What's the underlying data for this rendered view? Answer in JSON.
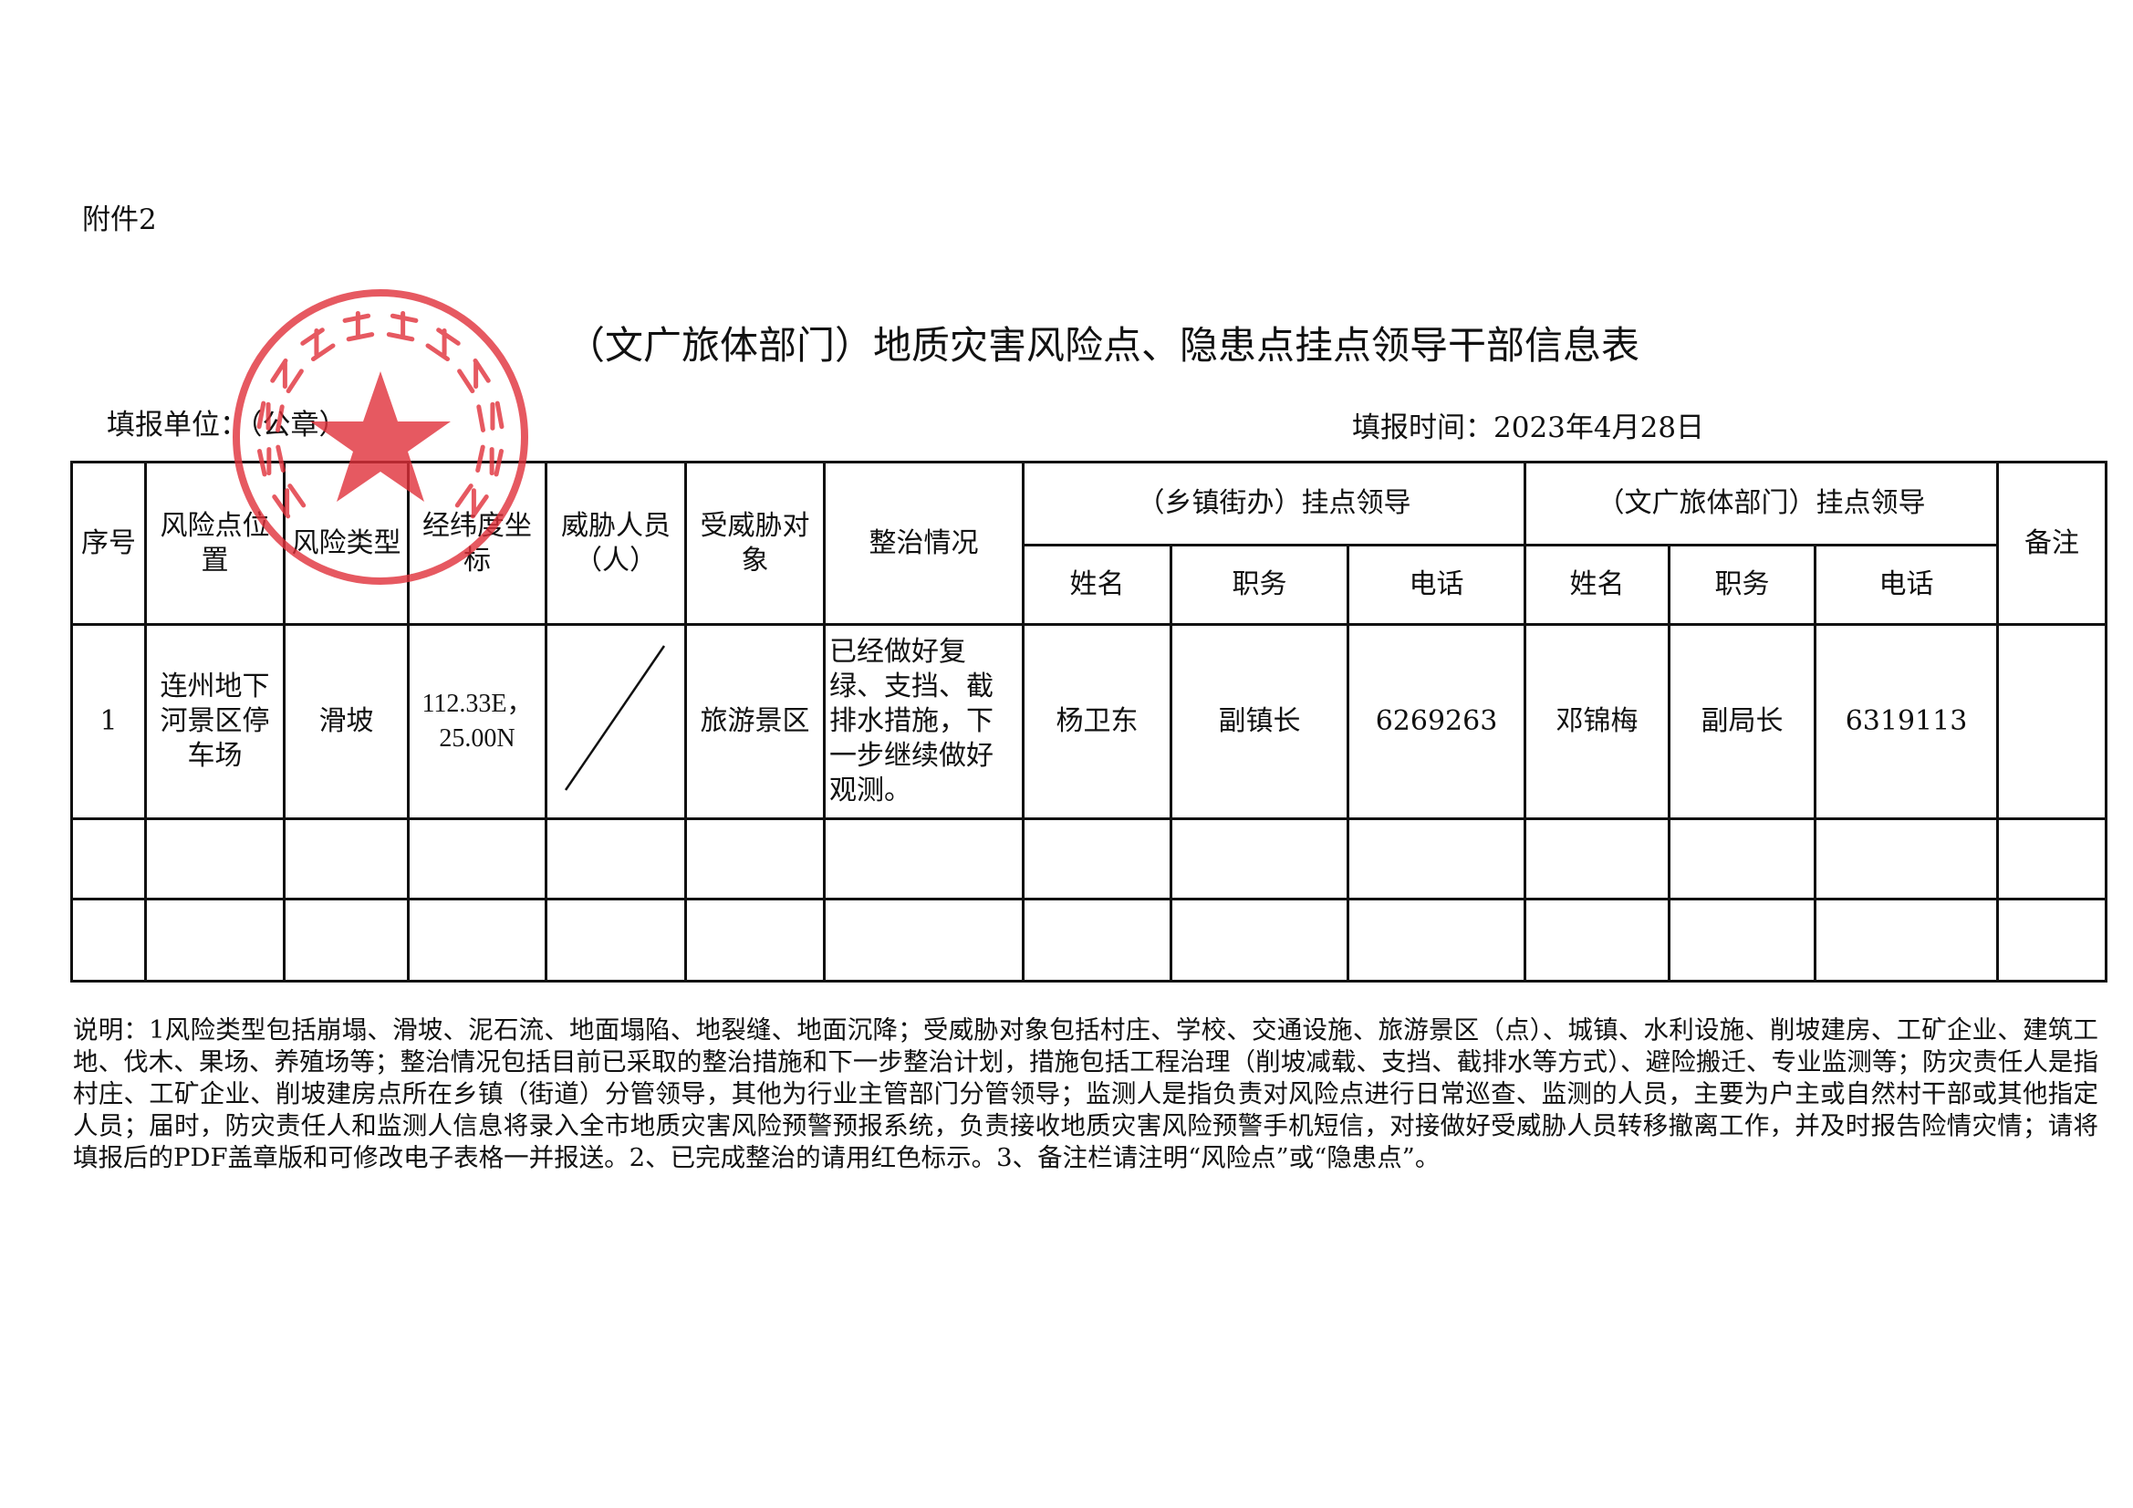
{
  "attachment_label": "附件2",
  "title": "（文广旅体部门）地质灾害风险点、隐患点挂点领导干部信息表",
  "fill_unit": "填报单位：（公章）",
  "fill_time": "填报时间：2023年4月28日",
  "stamp": {
    "text": "连州市文化广电旅游体育局",
    "color": "#e0303a"
  },
  "table": {
    "headers": [
      "序号",
      "风险点位置",
      "风险类型",
      "经纬度坐标",
      "威胁人员（人）",
      "受威胁对象",
      "整治情况",
      "备注"
    ],
    "group_town": "（乡镇街办）挂点领导",
    "group_dept": "（文广旅体部门）挂点领导",
    "sub_headers": [
      "姓名",
      "职务",
      "电话",
      "姓名",
      "职务",
      "电话"
    ],
    "rows": [
      {
        "no": "1",
        "location": "连州地下河景区停车场",
        "type": "滑坡",
        "coords": "112.33E，25.00N",
        "threatened_people": "",
        "object": "旅游景区",
        "remediation": "已经做好复绿、支挡、截排水措施，下一步继续做好观测。",
        "town_name": "杨卫东",
        "town_title": "副镇长",
        "town_phone": "6269263",
        "dept_name": "邓锦梅",
        "dept_title": "副局长",
        "dept_phone": "6319113",
        "remark": ""
      }
    ]
  },
  "notes": "说明：1风险类型包括崩塌、滑坡、泥石流、地面塌陷、地裂缝、地面沉降；受威胁对象包括村庄、学校、交通设施、旅游景区（点）、城镇、水利设施、削坡建房、工矿企业、建筑工地、伐木、果场、养殖场等；整治情况包括目前已采取的整治措施和下一步整治计划，措施包括工程治理（削坡减载、支挡、截排水等方式）、避险搬迁、专业监测等；防灾责任人是指村庄、工矿企业、削坡建房点所在乡镇（街道）分管领导，其他为行业主管部门分管领导；监测人是指负责对风险点进行日常巡查、监测的人员，主要为户主或自然村干部或其他指定人员；届时，防灾责任人和监测人信息将录入全市地质灾害风险预警预报系统，负责接收地质灾害风险预警手机短信，对接做好受威胁人员转移撤离工作，并及时报告险情灾情；请将填报后的PDF盖章版和可修改电子表格一并报送。2、已完成整治的请用红色标示。3、备注栏请注明“风险点”或“隐患点”。"
}
